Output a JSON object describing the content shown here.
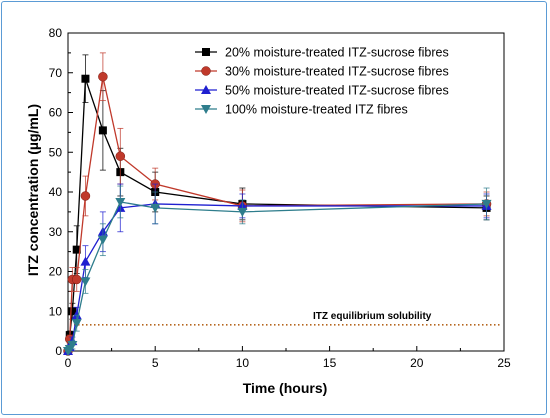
{
  "chart_data": {
    "type": "line",
    "xlabel": "Time (hours)",
    "ylabel": "ITZ concentration (µg/mL)",
    "xlim": [
      0,
      25
    ],
    "ylim": [
      0,
      80
    ],
    "xticks": [
      0,
      5,
      10,
      15,
      20,
      25
    ],
    "yticks": [
      0,
      10,
      20,
      30,
      40,
      50,
      60,
      70,
      80
    ],
    "grid": false,
    "legend_position": "top-right",
    "series": [
      {
        "name": "20% moisture-treated ITZ-sucrose fibres",
        "color": "#000000",
        "marker": "square",
        "points": [
          {
            "x": 0,
            "y": 0,
            "err": 0
          },
          {
            "x": 0.1,
            "y": 4,
            "err": 1
          },
          {
            "x": 0.25,
            "y": 10,
            "err": 2
          },
          {
            "x": 0.5,
            "y": 25.5,
            "err": 6
          },
          {
            "x": 1,
            "y": 68.5,
            "err": 6
          },
          {
            "x": 2,
            "y": 55.5,
            "err": 10
          },
          {
            "x": 3,
            "y": 45,
            "err": 6
          },
          {
            "x": 5,
            "y": 40,
            "err": 5
          },
          {
            "x": 10,
            "y": 37,
            "err": 4
          },
          {
            "x": 24,
            "y": 36,
            "err": 3
          }
        ]
      },
      {
        "name": "30% moisture-treated ITZ-sucrose fibres",
        "color": "#c0392b",
        "marker": "circle",
        "points": [
          {
            "x": 0,
            "y": 0,
            "err": 0
          },
          {
            "x": 0.1,
            "y": 3,
            "err": 1
          },
          {
            "x": 0.25,
            "y": 18,
            "err": 3
          },
          {
            "x": 0.5,
            "y": 18,
            "err": 3
          },
          {
            "x": 1,
            "y": 39,
            "err": 5
          },
          {
            "x": 2,
            "y": 69,
            "err": 6
          },
          {
            "x": 3,
            "y": 49,
            "err": 7
          },
          {
            "x": 5,
            "y": 42,
            "err": 4
          },
          {
            "x": 10,
            "y": 36.5,
            "err": 4
          },
          {
            "x": 24,
            "y": 37,
            "err": 3
          }
        ]
      },
      {
        "name": "50% moisture-treated ITZ-sucrose fibres",
        "color": "#1f1fd0",
        "marker": "triangle-up",
        "points": [
          {
            "x": 0,
            "y": 0,
            "err": 0
          },
          {
            "x": 0.1,
            "y": 1,
            "err": 0.5
          },
          {
            "x": 0.25,
            "y": 2.5,
            "err": 1
          },
          {
            "x": 0.5,
            "y": 9,
            "err": 2
          },
          {
            "x": 1,
            "y": 22.5,
            "err": 4
          },
          {
            "x": 2,
            "y": 30,
            "err": 5
          },
          {
            "x": 3,
            "y": 36,
            "err": 6
          },
          {
            "x": 5,
            "y": 37,
            "err": 5
          },
          {
            "x": 10,
            "y": 36.5,
            "err": 3
          },
          {
            "x": 24,
            "y": 36.5,
            "err": 3
          }
        ]
      },
      {
        "name": "100% moisture-treated ITZ fibres",
        "color": "#2e7d8c",
        "marker": "triangle-down",
        "points": [
          {
            "x": 0,
            "y": 0,
            "err": 0
          },
          {
            "x": 0.1,
            "y": 0.5,
            "err": 0.5
          },
          {
            "x": 0.25,
            "y": 1.5,
            "err": 1
          },
          {
            "x": 0.5,
            "y": 7,
            "err": 2
          },
          {
            "x": 1,
            "y": 17.5,
            "err": 3
          },
          {
            "x": 2,
            "y": 28,
            "err": 4
          },
          {
            "x": 3,
            "y": 37.5,
            "err": 4
          },
          {
            "x": 5,
            "y": 36,
            "err": 4
          },
          {
            "x": 10,
            "y": 35,
            "err": 3
          },
          {
            "x": 24,
            "y": 37,
            "err": 4
          }
        ]
      }
    ],
    "annotations": [
      {
        "text": "ITZ equilibrium solubility",
        "y": 7
      }
    ],
    "reference_line": {
      "y": 6.6,
      "color": "#b5651d",
      "style": "dotted"
    }
  }
}
